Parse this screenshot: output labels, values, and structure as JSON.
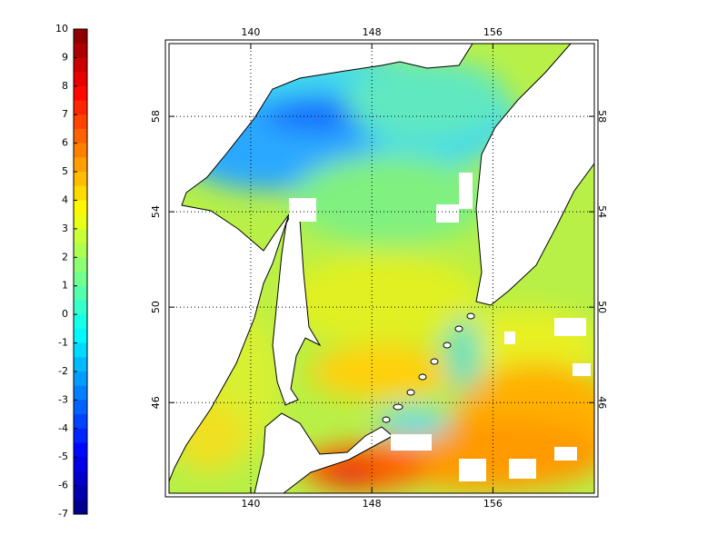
{
  "colorbar": {
    "range": [
      -7,
      10
    ],
    "ticks": [
      10,
      9,
      8,
      7,
      6,
      5,
      4,
      3,
      2,
      1,
      0,
      -1,
      -2,
      -3,
      -4,
      -5,
      -6,
      -7
    ]
  },
  "map": {
    "lon_range": [
      134.6,
      162.7
    ],
    "lat_range": [
      42.2,
      61.05
    ],
    "lon_ticks": [
      140,
      148,
      156
    ],
    "lat_ticks": [
      46,
      50,
      54,
      58
    ],
    "grid": true
  }
}
